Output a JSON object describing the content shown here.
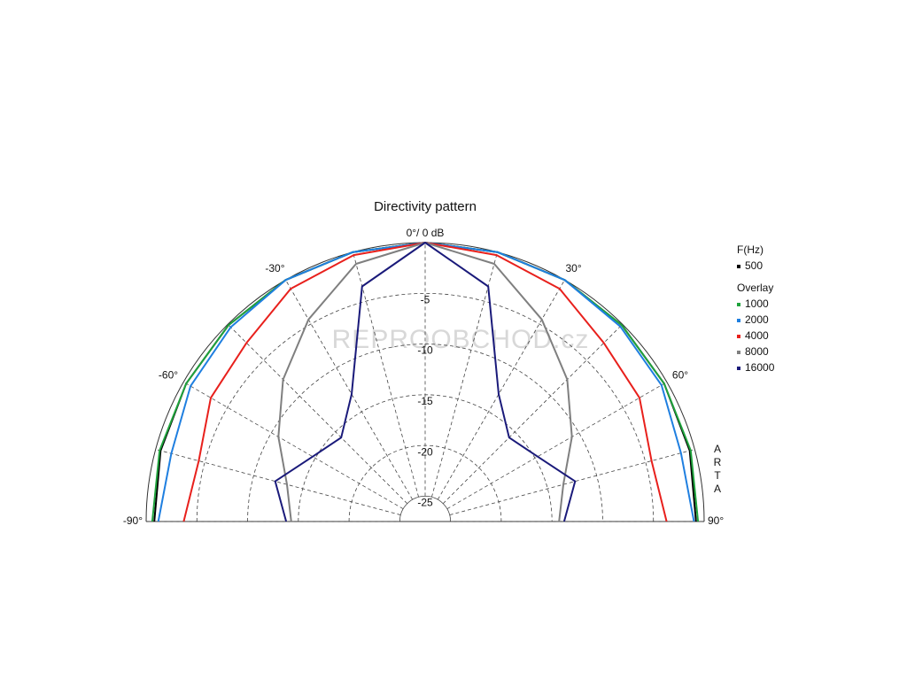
{
  "chart_data": {
    "type": "polar",
    "title": "Directivity pattern",
    "angles": [
      -90,
      -75,
      -60,
      -45,
      -30,
      -15,
      0,
      15,
      30,
      45,
      60,
      75,
      90
    ],
    "angle_ticks": [
      {
        "value": -90,
        "label": "-90°"
      },
      {
        "value": -60,
        "label": "-60°"
      },
      {
        "value": -30,
        "label": "-30°"
      },
      {
        "value": 0,
        "label": "0°/ 0 dB"
      },
      {
        "value": 30,
        "label": "30°"
      },
      {
        "value": 60,
        "label": "60°"
      },
      {
        "value": 90,
        "label": "90°"
      }
    ],
    "rlim": [
      -27.5,
      0
    ],
    "rticks": [
      -25,
      -20,
      -15,
      -10,
      -5
    ],
    "legend_title": "F(Hz)",
    "overlay_label": "Overlay",
    "watermark": "REPROOBCHOD.cz",
    "side_label": "ARTA",
    "series": [
      {
        "name": "500",
        "color": "#000000",
        "values": [
          -0.8,
          -0.5,
          -0.3,
          -0.1,
          0,
          0,
          0,
          0,
          0,
          -0.1,
          -0.3,
          -0.5,
          -0.8
        ]
      },
      {
        "name": "1000",
        "color": "#1fa33c",
        "values": [
          -0.6,
          -0.4,
          -0.3,
          -0.1,
          0,
          0,
          0,
          0,
          0,
          -0.1,
          -0.3,
          -0.4,
          -0.6
        ]
      },
      {
        "name": "2000",
        "color": "#1f7fe0",
        "values": [
          -1.2,
          -1.6,
          -0.8,
          -0.4,
          0,
          0,
          0,
          0,
          0,
          -0.3,
          -0.6,
          -1.4,
          -1.0
        ]
      },
      {
        "name": "4000",
        "color": "#e8201c",
        "values": [
          -3.7,
          -4.4,
          -3.1,
          -2.6,
          -1.0,
          -0.3,
          0,
          -0.3,
          -1.0,
          -2.6,
          -3.1,
          -4.4,
          -3.7
        ]
      },
      {
        "name": "8000",
        "color": "#7f7f7f",
        "values": [
          -14.3,
          -13.4,
          -10.8,
          -7.7,
          -4.5,
          -1.2,
          0,
          -1.2,
          -4.5,
          -7.7,
          -10.8,
          -13.4,
          -14.3
        ]
      },
      {
        "name": "16000",
        "color": "#1a1a7a",
        "values": [
          -13.8,
          -12.2,
          -14.7,
          -15.8,
          -13.0,
          -3.5,
          0,
          -3.5,
          -13.0,
          -15.8,
          -14.7,
          -12.2,
          -13.8
        ]
      }
    ]
  }
}
